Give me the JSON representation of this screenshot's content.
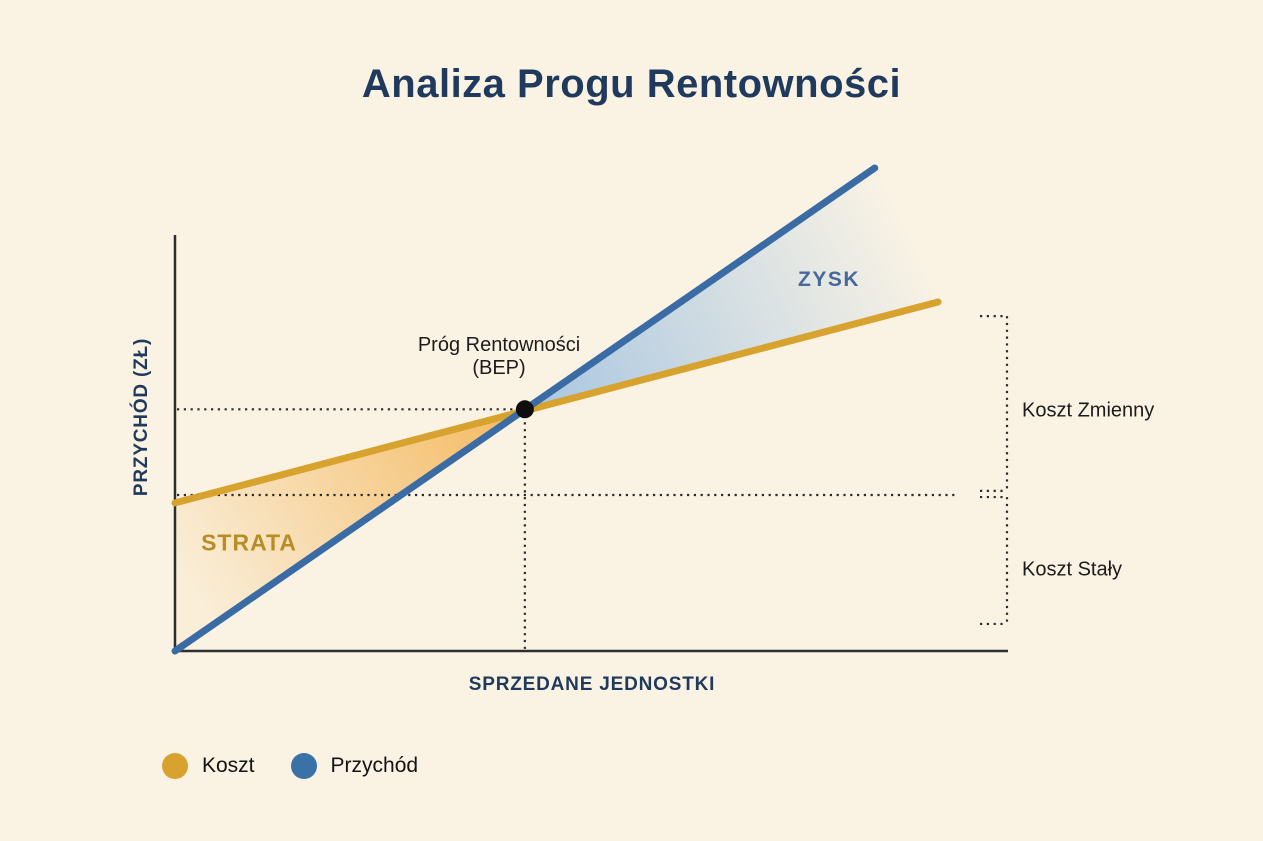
{
  "colors": {
    "background": "#FAF3E4",
    "heading": "#1F3A5C",
    "text_dark": "#1B1B1B",
    "axis": "#2E2E2E",
    "dotted": "#2B2B2B"
  },
  "chart_data": {
    "type": "line",
    "title": "Analiza Progu Rentowności",
    "xlabel": "SPRZEDANE JEDNOSTKI",
    "ylabel": "PRZYCHÓD (ZŁ)",
    "x_range": [
      0,
      100
    ],
    "y_range": [
      0,
      100
    ],
    "grid": false,
    "legend_position": "bottom-left",
    "series": [
      {
        "name": "Koszt",
        "color": "#D8A22F",
        "points": [
          [
            0,
            35.6
          ],
          [
            91.6,
            83.9
          ]
        ]
      },
      {
        "name": "Przychód",
        "color": "#3A6BA4",
        "points": [
          [
            0,
            0
          ],
          [
            84,
            116.1
          ]
        ]
      }
    ],
    "break_even_point": {
      "x": 42,
      "y": 58.1,
      "label": "Próg Rentowności (BEP)",
      "marker_color": "#0E0E0E"
    },
    "fixed_cost_level": {
      "y": 37.5,
      "x_end": 94
    },
    "regions": [
      {
        "name": "STRATA",
        "fill": "#F3A93B",
        "text_color": "#BA8C26"
      },
      {
        "name": "ZYSK",
        "fill": "#A3C3E1",
        "text_color": "#46699B"
      }
    ],
    "right_brackets": [
      {
        "label": "Koszt Zmienny",
        "y_span": [
          38.5,
          80.5
        ]
      },
      {
        "label": "Koszt Stały",
        "y_span": [
          6.5,
          37.0
        ]
      }
    ],
    "legend": [
      {
        "label": "Koszt",
        "color": "#D8A22F"
      },
      {
        "label": "Przychód",
        "color": "#3A72A8"
      }
    ]
  }
}
